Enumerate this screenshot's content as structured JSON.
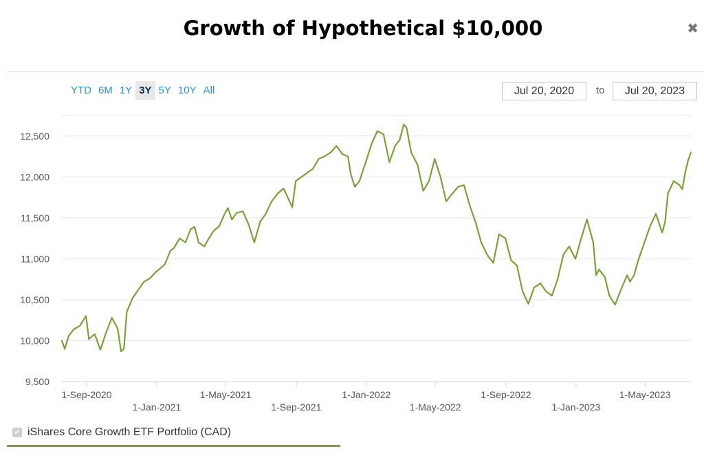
{
  "title": "Growth of Hypothetical $10,000",
  "close_symbol": "✖",
  "range_buttons": [
    {
      "label": "YTD",
      "active": false
    },
    {
      "label": "6M",
      "active": false
    },
    {
      "label": "1Y",
      "active": false
    },
    {
      "label": "3Y",
      "active": true
    },
    {
      "label": "5Y",
      "active": false
    },
    {
      "label": "10Y",
      "active": false
    },
    {
      "label": "All",
      "active": false
    }
  ],
  "date_range": {
    "from": "Jul 20, 2020",
    "separator": "to",
    "to": "Jul 20, 2023"
  },
  "legend": {
    "label": "iShares Core Growth ETF Portfolio (CAD)",
    "checked": true,
    "color": "#7ba03a"
  },
  "chart_data": {
    "type": "line",
    "title": "Growth of Hypothetical $10,000",
    "xlabel": "",
    "ylabel": "",
    "ylim": [
      9500,
      12750
    ],
    "yticks": [
      9500,
      10000,
      10500,
      11000,
      11500,
      12000,
      12500
    ],
    "ytick_labels": [
      "9,500",
      "10,000",
      "10,500",
      "11,000",
      "11,500",
      "12,000",
      "12,500"
    ],
    "xrange": [
      "2020-07-20",
      "2023-07-20"
    ],
    "xticks": [
      {
        "date": "2020-09-01",
        "label": "1-Sep-2020"
      },
      {
        "date": "2021-01-01",
        "label": "1-Jan-2021"
      },
      {
        "date": "2021-05-01",
        "label": "1-May-2021"
      },
      {
        "date": "2021-09-01",
        "label": "1-Sep-2021"
      },
      {
        "date": "2022-01-01",
        "label": "1-Jan-2022"
      },
      {
        "date": "2022-05-01",
        "label": "1-May-2022"
      },
      {
        "date": "2022-09-01",
        "label": "1-Sep-2022"
      },
      {
        "date": "2023-01-01",
        "label": "1-Jan-2023"
      },
      {
        "date": "2023-05-01",
        "label": "1-May-2023"
      }
    ],
    "grid": true,
    "series": [
      {
        "name": "iShares Core Growth ETF Portfolio (CAD)",
        "color": "#7ba03a",
        "points": [
          [
            "2020-07-20",
            10000
          ],
          [
            "2020-07-25",
            9900
          ],
          [
            "2020-08-01",
            10060
          ],
          [
            "2020-08-10",
            10140
          ],
          [
            "2020-08-20",
            10180
          ],
          [
            "2020-08-31",
            10300
          ],
          [
            "2020-09-05",
            10020
          ],
          [
            "2020-09-15",
            10080
          ],
          [
            "2020-09-25",
            9890
          ],
          [
            "2020-10-05",
            10100
          ],
          [
            "2020-10-15",
            10280
          ],
          [
            "2020-10-25",
            10150
          ],
          [
            "2020-10-31",
            9870
          ],
          [
            "2020-11-05",
            9900
          ],
          [
            "2020-11-10",
            10350
          ],
          [
            "2020-11-20",
            10520
          ],
          [
            "2020-11-30",
            10620
          ],
          [
            "2020-12-10",
            10720
          ],
          [
            "2020-12-20",
            10760
          ],
          [
            "2020-12-31",
            10840
          ],
          [
            "2021-01-15",
            10930
          ],
          [
            "2021-01-25",
            11100
          ],
          [
            "2021-01-31",
            11130
          ],
          [
            "2021-02-10",
            11250
          ],
          [
            "2021-02-20",
            11200
          ],
          [
            "2021-03-01",
            11360
          ],
          [
            "2021-03-08",
            11390
          ],
          [
            "2021-03-15",
            11200
          ],
          [
            "2021-03-25",
            11150
          ],
          [
            "2021-04-01",
            11240
          ],
          [
            "2021-04-10",
            11340
          ],
          [
            "2021-04-20",
            11400
          ],
          [
            "2021-04-30",
            11560
          ],
          [
            "2021-05-05",
            11620
          ],
          [
            "2021-05-12",
            11480
          ],
          [
            "2021-05-20",
            11560
          ],
          [
            "2021-05-31",
            11580
          ],
          [
            "2021-06-10",
            11420
          ],
          [
            "2021-06-20",
            11200
          ],
          [
            "2021-06-30",
            11450
          ],
          [
            "2021-07-10",
            11550
          ],
          [
            "2021-07-20",
            11700
          ],
          [
            "2021-07-31",
            11800
          ],
          [
            "2021-08-10",
            11860
          ],
          [
            "2021-08-25",
            11630
          ],
          [
            "2021-08-31",
            11950
          ],
          [
            "2021-09-10",
            12000
          ],
          [
            "2021-09-20",
            12050
          ],
          [
            "2021-09-30",
            12100
          ],
          [
            "2021-10-10",
            12220
          ],
          [
            "2021-10-20",
            12250
          ],
          [
            "2021-10-31",
            12300
          ],
          [
            "2021-11-10",
            12380
          ],
          [
            "2021-11-20",
            12280
          ],
          [
            "2021-11-30",
            12250
          ],
          [
            "2021-12-05",
            12030
          ],
          [
            "2021-12-12",
            11880
          ],
          [
            "2021-12-20",
            11950
          ],
          [
            "2021-12-31",
            12180
          ],
          [
            "2022-01-10",
            12400
          ],
          [
            "2022-01-20",
            12560
          ],
          [
            "2022-01-31",
            12520
          ],
          [
            "2022-02-10",
            12180
          ],
          [
            "2022-02-20",
            12380
          ],
          [
            "2022-02-28",
            12450
          ],
          [
            "2022-03-07",
            12640
          ],
          [
            "2022-03-12",
            12600
          ],
          [
            "2022-03-20",
            12300
          ],
          [
            "2022-03-31",
            12150
          ],
          [
            "2022-04-10",
            11830
          ],
          [
            "2022-04-20",
            11950
          ],
          [
            "2022-04-30",
            12220
          ],
          [
            "2022-05-10",
            12000
          ],
          [
            "2022-05-20",
            11700
          ],
          [
            "2022-05-31",
            11800
          ],
          [
            "2022-06-10",
            11880
          ],
          [
            "2022-06-20",
            11900
          ],
          [
            "2022-06-30",
            11650
          ],
          [
            "2022-07-10",
            11450
          ],
          [
            "2022-07-20",
            11200
          ],
          [
            "2022-07-31",
            11040
          ],
          [
            "2022-08-10",
            10950
          ],
          [
            "2022-08-20",
            11300
          ],
          [
            "2022-08-31",
            11250
          ],
          [
            "2022-09-10",
            10980
          ],
          [
            "2022-09-20",
            10920
          ],
          [
            "2022-09-30",
            10600
          ],
          [
            "2022-10-10",
            10450
          ],
          [
            "2022-10-20",
            10650
          ],
          [
            "2022-10-31",
            10700
          ],
          [
            "2022-11-10",
            10600
          ],
          [
            "2022-11-20",
            10550
          ],
          [
            "2022-11-30",
            10750
          ],
          [
            "2022-12-10",
            11050
          ],
          [
            "2022-12-20",
            11150
          ],
          [
            "2022-12-31",
            11000
          ],
          [
            "2023-01-10",
            11250
          ],
          [
            "2023-01-20",
            11480
          ],
          [
            "2023-01-31",
            11200
          ],
          [
            "2023-02-05",
            10800
          ],
          [
            "2023-02-10",
            10870
          ],
          [
            "2023-02-20",
            10780
          ],
          [
            "2023-02-28",
            10550
          ],
          [
            "2023-03-10",
            10440
          ],
          [
            "2023-03-20",
            10620
          ],
          [
            "2023-03-31",
            10800
          ],
          [
            "2023-04-05",
            10720
          ],
          [
            "2023-04-12",
            10800
          ],
          [
            "2023-04-20",
            11000
          ],
          [
            "2023-04-30",
            11200
          ],
          [
            "2023-05-10",
            11400
          ],
          [
            "2023-05-20",
            11550
          ],
          [
            "2023-05-31",
            11320
          ],
          [
            "2023-06-05",
            11450
          ],
          [
            "2023-06-10",
            11800
          ],
          [
            "2023-06-20",
            11950
          ],
          [
            "2023-06-30",
            11900
          ],
          [
            "2023-07-05",
            11850
          ],
          [
            "2023-07-10",
            12050
          ],
          [
            "2023-07-15",
            12200
          ],
          [
            "2023-07-20",
            12300
          ]
        ]
      }
    ]
  }
}
